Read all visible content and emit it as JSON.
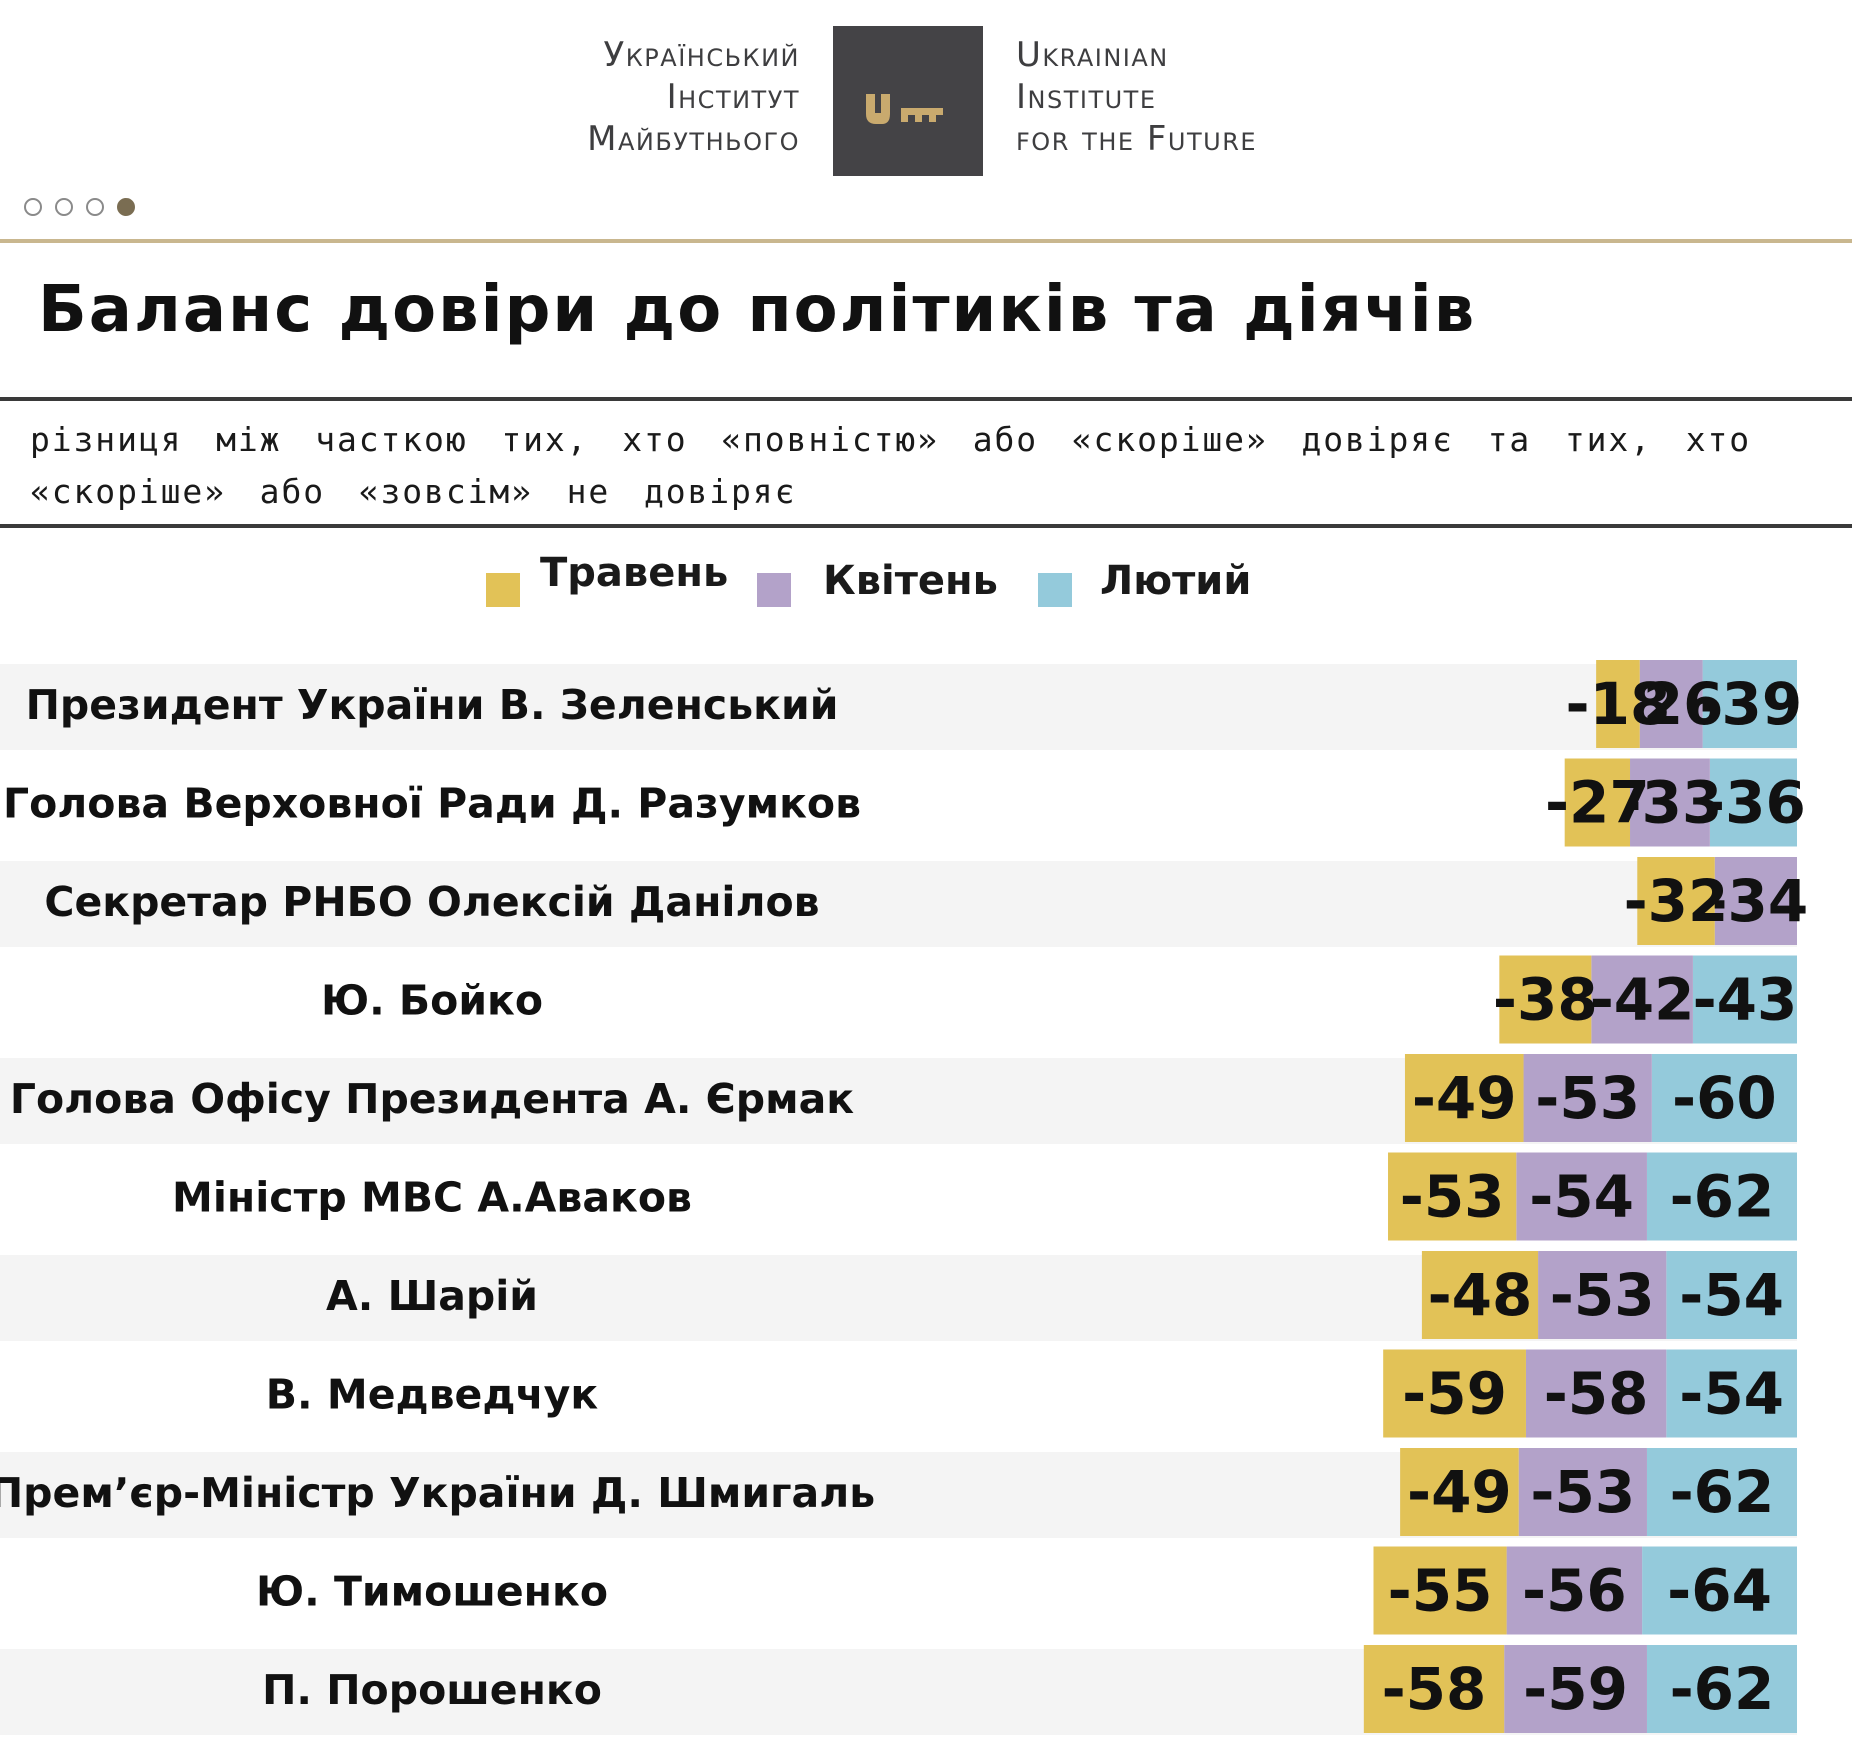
{
  "logo": {
    "ua_lines": [
      "Український",
      "Інститут",
      "Майбутнього"
    ],
    "en_lines": [
      "Ukrainian",
      "Institute",
      "for the Future"
    ],
    "icon": "key-icon"
  },
  "pager": {
    "total": 4,
    "active": 4
  },
  "title": "Баланс довіри до політиків та діячів",
  "subtitle": "різниця між часткою тих, хто «повністю» або «скоріше» довіряє та тих, хто «скоріше» або «зовсім» не довіряє",
  "colors": {
    "may": "#e2c257",
    "april": "#b3a2c9",
    "february": "#94cadb",
    "row_stripe": "#f4f4f4"
  },
  "chart_data": {
    "type": "bar",
    "orientation": "horizontal-stacked",
    "title": "Баланс довіри до політиків та діячів",
    "series": [
      {
        "name": "Травень",
        "key": "may",
        "values": [
          -18,
          -27,
          -32,
          -38,
          -49,
          -53,
          -48,
          -59,
          -49,
          -55,
          -58
        ]
      },
      {
        "name": "Квітень",
        "key": "april",
        "values": [
          -26,
          -33,
          -34,
          -42,
          -53,
          -54,
          -53,
          -58,
          -53,
          -56,
          -59
        ]
      },
      {
        "name": "Лютий",
        "key": "february",
        "values": [
          -39,
          -36,
          null,
          -43,
          -60,
          -62,
          -54,
          -54,
          -62,
          -64,
          -62
        ]
      }
    ],
    "categories": [
      "Президент України В. Зеленський",
      "Голова Верховної Ради Д. Разумков",
      "Секретар РНБО Олексій Данілов",
      "Ю. Бойко",
      "Голова Офісу Президента А. Єрмак",
      "Міністр МВС А.Аваков",
      "А. Шарій",
      "В. Медведчук",
      "Прем’єр-Міністр України Д. Шмигаль",
      "Ю. Тимошенко",
      "П. Порошенко"
    ],
    "legend": [
      "Травень",
      "Квітень",
      "Лютий"
    ],
    "legend_position": "top-center",
    "xlabel": "",
    "ylabel": ""
  }
}
